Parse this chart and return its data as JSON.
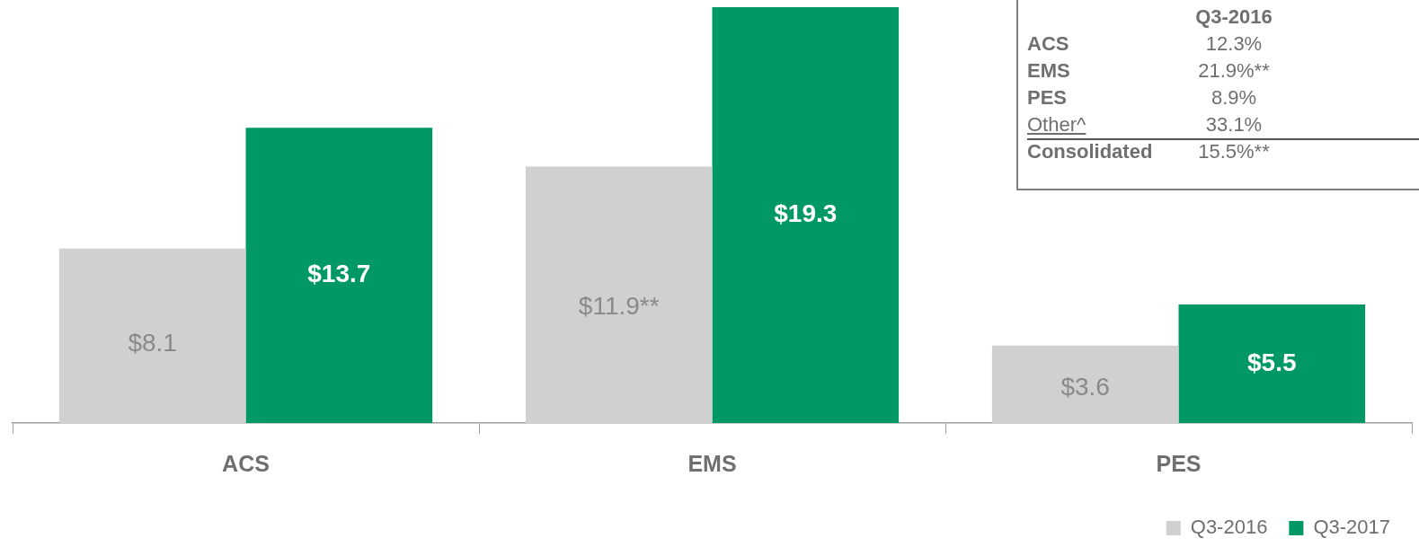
{
  "chart_data": {
    "type": "bar",
    "relative": false,
    "categories": [
      "ACS",
      "EMS",
      "PES"
    ],
    "series": [
      {
        "name": "Q3-2016",
        "color": "#d0d0d0",
        "values": [
          8.1,
          11.9,
          3.6
        ],
        "value_labels": [
          "$8.1",
          "$11.9**",
          "$3.6"
        ]
      },
      {
        "name": "Q3-2017",
        "color": "#009966",
        "values": [
          13.7,
          19.3,
          5.5
        ],
        "value_labels": [
          "$13.7",
          "$19.3",
          "$5.5"
        ]
      }
    ],
    "legend": "bottom right",
    "annotations": [
      "Q3-2016",
      "ACS",
      "12.3%",
      "EMS",
      "21.9%**",
      "PES",
      "8.9%",
      "Other^",
      "33.1%",
      "Consolidated",
      "15.5%**"
    ]
  }
}
